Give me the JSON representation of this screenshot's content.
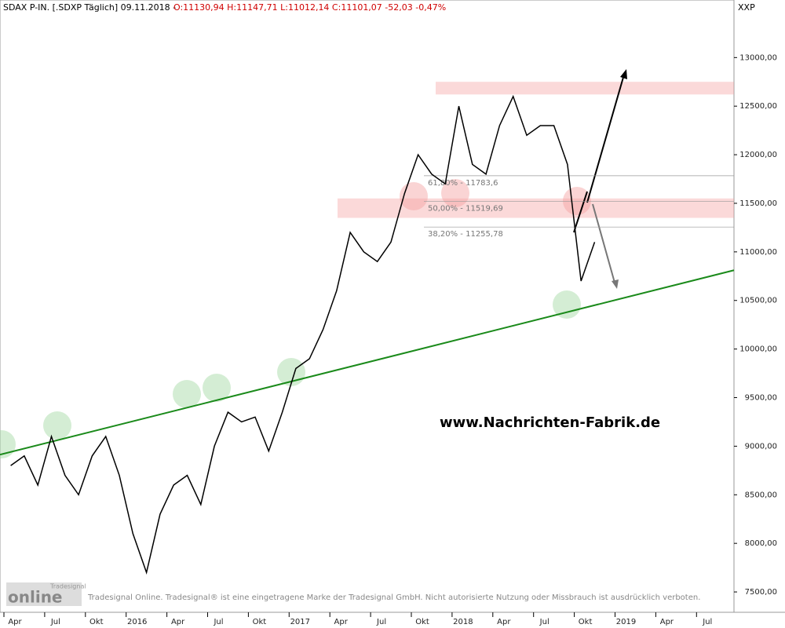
{
  "header": {
    "instrument": "SDAX P-IN. [.SDXP  Täglich] 09.11.2018 -",
    "quote": "O:11130,94 H:11147,71 L:11012,14 C:11101,07 -52,03 -0,47%",
    "axis_code": "XXP"
  },
  "chart_data": {
    "type": "line",
    "color": "#000000",
    "categories": [
      "Apr",
      null,
      null,
      "Jul",
      null,
      null,
      "Okt",
      null,
      null,
      "2016",
      null,
      null,
      "Apr",
      null,
      null,
      "Jul",
      null,
      null,
      "Okt",
      null,
      null,
      "2017",
      null,
      null,
      "Apr",
      null,
      null,
      "Jul",
      null,
      null,
      "Okt",
      null,
      null,
      "2018",
      null,
      null,
      "Apr",
      null,
      null,
      "Jul",
      null,
      null,
      "Okt",
      null,
      null,
      "2019",
      null,
      null,
      "Apr",
      null,
      null,
      "Jul"
    ],
    "values": [
      8800,
      8900,
      8600,
      9100,
      8700,
      8500,
      8900,
      9100,
      8700,
      8100,
      7700,
      8300,
      8600,
      8700,
      8400,
      9000,
      9350,
      9250,
      9300,
      8950,
      9350,
      9800,
      9900,
      10200,
      10600,
      11200,
      11000,
      10900,
      11100,
      11600,
      12000,
      11800,
      11700,
      12500,
      11900,
      11800,
      12300,
      12600,
      12200,
      12300,
      12300,
      11900,
      10700,
      11101.07,
      null,
      null,
      null,
      null,
      null,
      null,
      null,
      null
    ],
    "ylim": [
      7250,
      13350
    ],
    "yticks": [
      {
        "value": 7500,
        "label": "7500,00"
      },
      {
        "value": 8000,
        "label": "8000,00"
      },
      {
        "value": 8500,
        "label": "8500,00"
      },
      {
        "value": 9000,
        "label": "9000,00"
      },
      {
        "value": 9500,
        "label": "9500,00"
      },
      {
        "value": 10000,
        "label": "10000,00"
      },
      {
        "value": 10500,
        "label": "10500,00"
      },
      {
        "value": 11000,
        "label": "11000,00"
      },
      {
        "value": 11500,
        "label": "11500,00"
      },
      {
        "value": 12000,
        "label": "12000,00"
      },
      {
        "value": 12500,
        "label": "12500,00"
      },
      {
        "value": 13000,
        "label": "13000,00"
      }
    ],
    "fib_levels": [
      {
        "value": 11783.6,
        "label": "61,80% - 11783,6"
      },
      {
        "value": 11519.69,
        "label": "50,00% - 11519,69"
      },
      {
        "value": 11255.78,
        "label": "38,20% - 11255,78"
      }
    ],
    "zones": [
      [
        12620,
        12750
      ],
      [
        11350,
        11550
      ]
    ],
    "trendline": [
      8913,
      10811
    ],
    "watermark": "www.Nachrichten-Fabrik.de"
  },
  "footer": {
    "logo_small": "Tradesignal",
    "logo": "online",
    "disclaimer": "Tradesignal Online. Tradesignal® ist eine eingetragene Marke der Tradesignal GmbH. Nicht autorisierte Nutzung oder Missbrauch ist ausdrücklich verboten."
  }
}
